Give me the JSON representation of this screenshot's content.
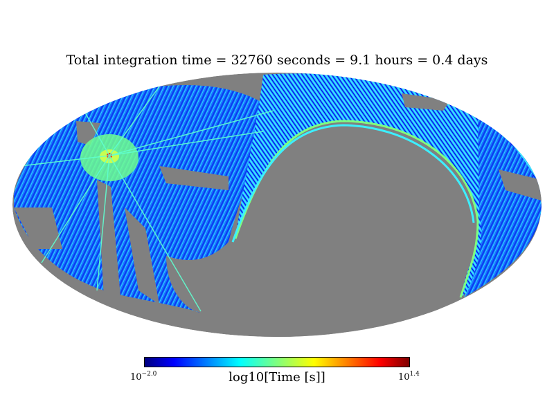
{
  "title": "Total integration time = 32760 seconds = 9.1 hours = 0.4 days",
  "map": {
    "projection": "mollweide",
    "background_color": "#808080",
    "colormap": "jet"
  },
  "colorbar": {
    "label": "log10[Time [s]]",
    "min_base": "10",
    "min_exp": "−2.0",
    "max_base": "10",
    "max_exp": "1.4"
  }
}
